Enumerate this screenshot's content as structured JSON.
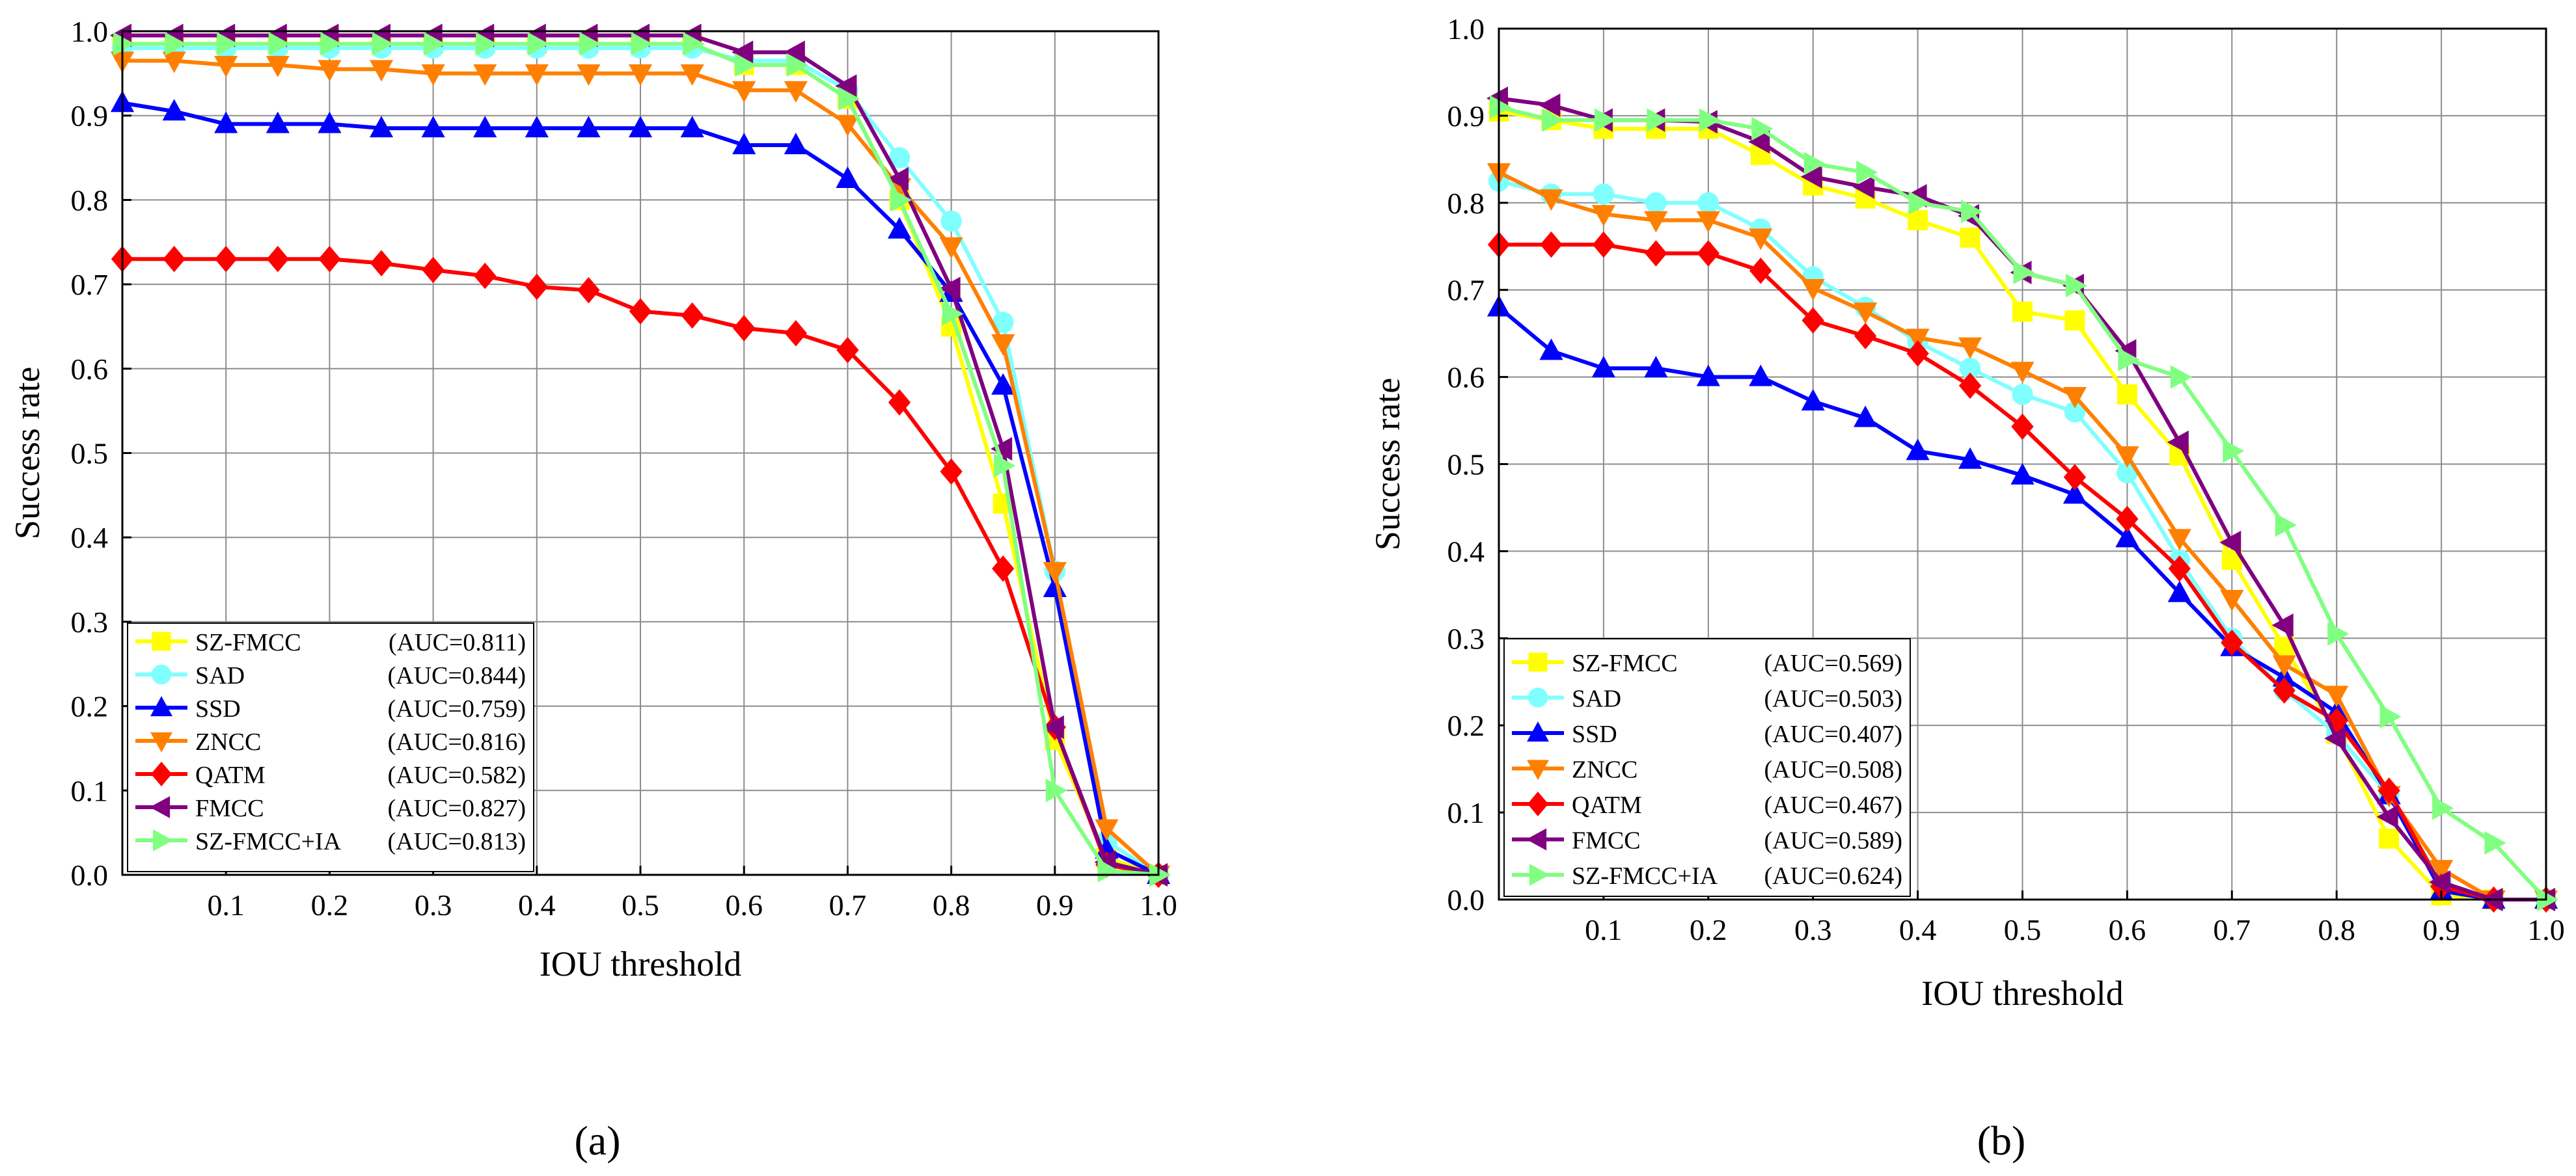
{
  "chart_data": [
    {
      "type": "line",
      "panel_label": "(a)",
      "xlabel": "IOU threshold",
      "ylabel": "Success rate",
      "xlim": [
        0,
        1.0
      ],
      "ylim": [
        0,
        1.0
      ],
      "xticks": [
        "0.1",
        "0.2",
        "0.3",
        "0.4",
        "0.5",
        "0.6",
        "0.7",
        "0.8",
        "0.9",
        "1.0"
      ],
      "yticks": [
        "0.0",
        "0.1",
        "0.2",
        "0.3",
        "0.4",
        "0.5",
        "0.6",
        "0.7",
        "0.8",
        "0.9",
        "1.0"
      ],
      "grid": true,
      "legend_position": "bottom-left",
      "x": [
        0,
        0.05,
        0.1,
        0.15,
        0.2,
        0.25,
        0.3,
        0.35,
        0.4,
        0.45,
        0.5,
        0.55,
        0.6,
        0.65,
        0.7,
        0.75,
        0.8,
        0.85,
        0.9,
        0.95,
        1.0
      ],
      "series": [
        {
          "name": "SZ-FMCC",
          "auc": "(AUC=0.811)",
          "color": "#ffff00",
          "marker": "square",
          "values": [
            0.985,
            0.985,
            0.985,
            0.985,
            0.985,
            0.985,
            0.985,
            0.985,
            0.985,
            0.985,
            0.985,
            0.985,
            0.96,
            0.96,
            0.92,
            0.8,
            0.65,
            0.44,
            0.16,
            0.02,
            0.0
          ]
        },
        {
          "name": "SAD",
          "auc": "(AUC=0.844)",
          "color": "#80ffff",
          "marker": "circle",
          "values": [
            0.98,
            0.98,
            0.98,
            0.98,
            0.98,
            0.98,
            0.98,
            0.98,
            0.98,
            0.98,
            0.98,
            0.98,
            0.965,
            0.965,
            0.93,
            0.85,
            0.775,
            0.655,
            0.36,
            0.04,
            0.0
          ]
        },
        {
          "name": "SSD",
          "auc": "(AUC=0.759)",
          "color": "#0000ff",
          "marker": "triangle-up",
          "values": [
            0.915,
            0.905,
            0.89,
            0.89,
            0.89,
            0.885,
            0.885,
            0.885,
            0.885,
            0.885,
            0.885,
            0.885,
            0.865,
            0.865,
            0.825,
            0.765,
            0.69,
            0.58,
            0.34,
            0.03,
            0.0
          ]
        },
        {
          "name": "ZNCC",
          "auc": "(AUC=0.816)",
          "color": "#ff8000",
          "marker": "triangle-down",
          "values": [
            0.965,
            0.965,
            0.96,
            0.96,
            0.955,
            0.955,
            0.95,
            0.95,
            0.95,
            0.95,
            0.95,
            0.95,
            0.93,
            0.93,
            0.89,
            0.815,
            0.745,
            0.63,
            0.36,
            0.055,
            0.0
          ]
        },
        {
          "name": "QATM",
          "auc": "(AUC=0.582)",
          "color": "#ff0000",
          "marker": "diamond",
          "values": [
            0.73,
            0.73,
            0.73,
            0.73,
            0.73,
            0.725,
            0.717,
            0.71,
            0.697,
            0.693,
            0.668,
            0.663,
            0.648,
            0.642,
            0.622,
            0.56,
            0.478,
            0.363,
            0.175,
            0.012,
            0.0
          ]
        },
        {
          "name": "FMCC",
          "auc": "(AUC=0.827)",
          "color": "#800080",
          "marker": "triangle-left",
          "values": [
            0.995,
            0.995,
            0.995,
            0.995,
            0.995,
            0.995,
            0.995,
            0.995,
            0.995,
            0.995,
            0.995,
            0.995,
            0.975,
            0.975,
            0.935,
            0.825,
            0.695,
            0.505,
            0.175,
            0.015,
            0.0
          ]
        },
        {
          "name": "SZ-FMCC+IA",
          "auc": "(AUC=0.813)",
          "color": "#80ff80",
          "marker": "triangle-right",
          "values": [
            0.985,
            0.985,
            0.985,
            0.985,
            0.985,
            0.985,
            0.985,
            0.985,
            0.985,
            0.985,
            0.985,
            0.985,
            0.96,
            0.96,
            0.92,
            0.8,
            0.665,
            0.485,
            0.1,
            0.005,
            0.0
          ]
        }
      ]
    },
    {
      "type": "line",
      "panel_label": "(b)",
      "xlabel": "IOU threshold",
      "ylabel": "Success rate",
      "xlim": [
        0,
        1.0
      ],
      "ylim": [
        0,
        1.0
      ],
      "xticks": [
        "0.1",
        "0.2",
        "0.3",
        "0.4",
        "0.5",
        "0.6",
        "0.7",
        "0.8",
        "0.9",
        "1.0"
      ],
      "yticks": [
        "0.0",
        "0.1",
        "0.2",
        "0.3",
        "0.4",
        "0.5",
        "0.6",
        "0.7",
        "0.8",
        "0.9",
        "1.0"
      ],
      "grid": true,
      "legend_position": "bottom-left",
      "x": [
        0,
        0.05,
        0.1,
        0.15,
        0.2,
        0.25,
        0.3,
        0.35,
        0.4,
        0.45,
        0.5,
        0.55,
        0.6,
        0.65,
        0.7,
        0.75,
        0.8,
        0.85,
        0.9,
        0.95,
        1.0
      ],
      "series": [
        {
          "name": "SZ-FMCC",
          "auc": "(AUC=0.569)",
          "color": "#ffff00",
          "marker": "square",
          "values": [
            0.905,
            0.895,
            0.885,
            0.885,
            0.885,
            0.855,
            0.82,
            0.805,
            0.78,
            0.76,
            0.675,
            0.665,
            0.58,
            0.51,
            0.39,
            0.29,
            0.19,
            0.07,
            0.005,
            0.0,
            0.0
          ]
        },
        {
          "name": "SAD",
          "auc": "(AUC=0.503)",
          "color": "#80ffff",
          "marker": "circle",
          "values": [
            0.825,
            0.81,
            0.81,
            0.8,
            0.8,
            0.77,
            0.715,
            0.68,
            0.64,
            0.61,
            0.58,
            0.56,
            0.49,
            0.39,
            0.3,
            0.24,
            0.19,
            0.12,
            0.02,
            0.0,
            0.0
          ]
        },
        {
          "name": "SSD",
          "auc": "(AUC=0.407)",
          "color": "#0000ff",
          "marker": "triangle-up",
          "values": [
            0.68,
            0.63,
            0.61,
            0.61,
            0.6,
            0.6,
            0.572,
            0.553,
            0.515,
            0.505,
            0.487,
            0.465,
            0.415,
            0.352,
            0.29,
            0.255,
            0.215,
            0.12,
            0.01,
            0.0,
            0.0
          ]
        },
        {
          "name": "ZNCC",
          "auc": "(AUC=0.508)",
          "color": "#ff8000",
          "marker": "triangle-down",
          "values": [
            0.835,
            0.805,
            0.787,
            0.78,
            0.78,
            0.76,
            0.702,
            0.675,
            0.645,
            0.635,
            0.607,
            0.578,
            0.51,
            0.415,
            0.345,
            0.27,
            0.235,
            0.12,
            0.035,
            0.0,
            0.0
          ]
        },
        {
          "name": "QATM",
          "auc": "(AUC=0.467)",
          "color": "#ff0000",
          "marker": "diamond",
          "values": [
            0.752,
            0.752,
            0.752,
            0.742,
            0.742,
            0.722,
            0.665,
            0.647,
            0.627,
            0.59,
            0.543,
            0.485,
            0.437,
            0.38,
            0.295,
            0.24,
            0.205,
            0.125,
            0.015,
            0.0,
            0.0
          ]
        },
        {
          "name": "FMCC",
          "auc": "(AUC=0.589)",
          "color": "#800080",
          "marker": "triangle-left",
          "values": [
            0.92,
            0.912,
            0.895,
            0.895,
            0.893,
            0.87,
            0.83,
            0.818,
            0.808,
            0.785,
            0.72,
            0.705,
            0.63,
            0.525,
            0.41,
            0.315,
            0.185,
            0.095,
            0.02,
            0.0,
            0.0
          ]
        },
        {
          "name": "SZ-FMCC+IA",
          "auc": "(AUC=0.624)",
          "color": "#80ff80",
          "marker": "triangle-right",
          "values": [
            0.91,
            0.895,
            0.895,
            0.895,
            0.895,
            0.885,
            0.845,
            0.835,
            0.8,
            0.79,
            0.72,
            0.705,
            0.62,
            0.6,
            0.515,
            0.43,
            0.305,
            0.21,
            0.105,
            0.065,
            0.0
          ]
        }
      ]
    }
  ]
}
